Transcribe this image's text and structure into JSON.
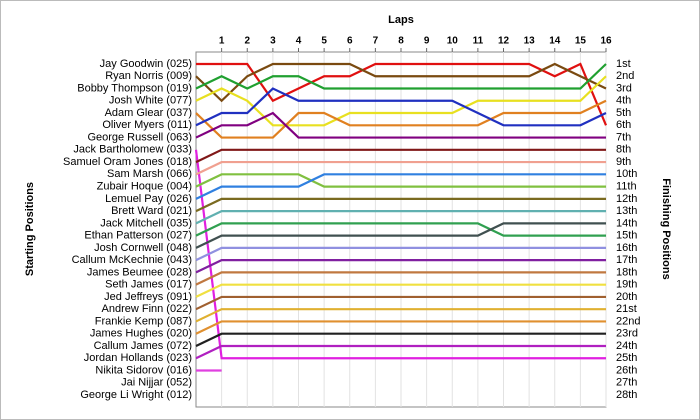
{
  "chart_data": {
    "type": "lap",
    "title": "Laps",
    "y_label": "Starting Positions",
    "y2_label": "Finishing Positions",
    "x": [
      0,
      1,
      2,
      3,
      4,
      5,
      6,
      7,
      8,
      9,
      10,
      11,
      12,
      13,
      14,
      15,
      16
    ],
    "xlim": [
      0,
      16
    ],
    "xticks": [
      1,
      2,
      3,
      4,
      5,
      6,
      7,
      8,
      9,
      10,
      11,
      12,
      13,
      14,
      15,
      16
    ],
    "ylim": [
      1,
      28
    ],
    "grid": true,
    "finish_labels": [
      "1st",
      "2nd",
      "3rd",
      "4th",
      "5th",
      "6th",
      "7th",
      "8th",
      "9th",
      "10th",
      "11th",
      "12th",
      "13th",
      "14th",
      "15th",
      "16th",
      "17th",
      "18th",
      "19th",
      "20th",
      "21st",
      "22nd",
      "23rd",
      "24th",
      "25th",
      "26th",
      "27th",
      "28th"
    ],
    "series": [
      {
        "name": "Jay Goodwin (025)",
        "color": "#e01010",
        "values": [
          1,
          1,
          1,
          4,
          3,
          2,
          2,
          1,
          1,
          1,
          1,
          1,
          1,
          1,
          2,
          1,
          6
        ]
      },
      {
        "name": "Ryan Norris (009)",
        "color": "#7a4a10",
        "values": [
          2,
          4,
          2,
          1,
          1,
          1,
          1,
          2,
          2,
          2,
          2,
          2,
          2,
          2,
          1,
          2,
          3
        ]
      },
      {
        "name": "Bobby Thompson (019)",
        "color": "#20a030",
        "values": [
          3,
          2,
          3,
          2,
          2,
          3,
          3,
          3,
          3,
          3,
          3,
          3,
          3,
          3,
          3,
          3,
          1
        ]
      },
      {
        "name": "Josh White (077)",
        "color": "#e8e020",
        "values": [
          4,
          3,
          4,
          6,
          6,
          6,
          5,
          5,
          5,
          5,
          5,
          4,
          4,
          4,
          4,
          4,
          2
        ]
      },
      {
        "name": "Adam Glear (037)",
        "color": "#e08020",
        "values": [
          5,
          7,
          7,
          7,
          5,
          5,
          6,
          6,
          6,
          6,
          6,
          6,
          5,
          5,
          5,
          5,
          4
        ]
      },
      {
        "name": "Oliver Myers (011)",
        "color": "#2030c0",
        "values": [
          6,
          5,
          5,
          3,
          4,
          4,
          4,
          4,
          4,
          4,
          4,
          5,
          6,
          6,
          6,
          6,
          5
        ]
      },
      {
        "name": "George Russell (063)",
        "color": "#800080",
        "values": [
          7,
          6,
          6,
          5,
          7,
          7,
          7,
          7,
          7,
          7,
          7,
          7,
          7,
          7,
          7,
          7,
          7
        ]
      },
      {
        "name": "Jack Bartholomew (033)",
        "color": "#e020e0",
        "values": [
          8,
          25,
          25,
          25,
          25,
          25,
          25,
          25,
          25,
          25,
          25,
          25,
          25,
          25,
          25,
          25,
          25
        ]
      },
      {
        "name": "Samuel Oram Jones (018)",
        "color": "#801818",
        "values": [
          9,
          8,
          8,
          8,
          8,
          8,
          8,
          8,
          8,
          8,
          8,
          8,
          8,
          8,
          8,
          8,
          8
        ]
      },
      {
        "name": "Sam Marsh (066)",
        "color": "#f0a090",
        "values": [
          10,
          9,
          9,
          9,
          9,
          9,
          9,
          9,
          9,
          9,
          9,
          9,
          9,
          9,
          9,
          9,
          9
        ]
      },
      {
        "name": "Zubair Hoque (004)",
        "color": "#80c040",
        "values": [
          11,
          10,
          10,
          10,
          10,
          11,
          11,
          11,
          11,
          11,
          11,
          11,
          11,
          11,
          11,
          11,
          11
        ]
      },
      {
        "name": "Lemuel Pay (026)",
        "color": "#3080e0",
        "values": [
          12,
          11,
          11,
          11,
          11,
          10,
          10,
          10,
          10,
          10,
          10,
          10,
          10,
          10,
          10,
          10,
          10
        ]
      },
      {
        "name": "Brett Ward (021)",
        "color": "#7a6a20",
        "values": [
          13,
          12,
          12,
          12,
          12,
          12,
          12,
          12,
          12,
          12,
          12,
          12,
          12,
          12,
          12,
          12,
          12
        ]
      },
      {
        "name": "Jack Mitchell (035)",
        "color": "#60b0b0",
        "values": [
          14,
          13,
          13,
          13,
          13,
          13,
          13,
          13,
          13,
          13,
          13,
          13,
          13,
          13,
          13,
          13,
          13
        ]
      },
      {
        "name": "Ethan Patterson (027)",
        "color": "#30a050",
        "values": [
          15,
          14,
          14,
          14,
          14,
          14,
          14,
          14,
          14,
          14,
          14,
          14,
          15,
          15,
          15,
          15,
          15
        ]
      },
      {
        "name": "Josh Cornwell (048)",
        "color": "#405050",
        "values": [
          16,
          15,
          15,
          15,
          15,
          15,
          15,
          15,
          15,
          15,
          15,
          15,
          14,
          14,
          14,
          14,
          14
        ]
      },
      {
        "name": "Callum McKechnie (043)",
        "color": "#9090e0",
        "values": [
          17,
          16,
          16,
          16,
          16,
          16,
          16,
          16,
          16,
          16,
          16,
          16,
          16,
          16,
          16,
          16,
          16
        ]
      },
      {
        "name": "James Beumee (028)",
        "color": "#8020a0",
        "values": [
          18,
          17,
          17,
          17,
          17,
          17,
          17,
          17,
          17,
          17,
          17,
          17,
          17,
          17,
          17,
          17,
          17
        ]
      },
      {
        "name": "Seth James (017)",
        "color": "#c07840",
        "values": [
          19,
          18,
          18,
          18,
          18,
          18,
          18,
          18,
          18,
          18,
          18,
          18,
          18,
          18,
          18,
          18,
          18
        ]
      },
      {
        "name": "Jed Jeffreys (091)",
        "color": "#f0e040",
        "values": [
          20,
          19,
          19,
          19,
          19,
          19,
          19,
          19,
          19,
          19,
          19,
          19,
          19,
          19,
          19,
          19,
          19
        ]
      },
      {
        "name": "Andrew Finn (022)",
        "color": "#a06030",
        "values": [
          21,
          20,
          20,
          20,
          20,
          20,
          20,
          20,
          20,
          20,
          20,
          20,
          20,
          20,
          20,
          20,
          20
        ]
      },
      {
        "name": "Frankie Kemp (087)",
        "color": "#e0b030",
        "values": [
          22,
          21,
          21,
          21,
          21,
          21,
          21,
          21,
          21,
          21,
          21,
          21,
          21,
          21,
          21,
          21,
          21
        ]
      },
      {
        "name": "James Hughes (020)",
        "color": "#e09030",
        "values": [
          23,
          22,
          22,
          22,
          22,
          22,
          22,
          22,
          22,
          22,
          22,
          22,
          22,
          22,
          22,
          22,
          22
        ]
      },
      {
        "name": "Callum James (072)",
        "color": "#202020",
        "values": [
          24,
          23,
          23,
          23,
          23,
          23,
          23,
          23,
          23,
          23,
          23,
          23,
          23,
          23,
          23,
          23,
          23
        ]
      },
      {
        "name": "Jordan Hollands (023)",
        "color": "#b020c0",
        "values": [
          25,
          24,
          24,
          24,
          24,
          24,
          24,
          24,
          24,
          24,
          24,
          24,
          24,
          24,
          24,
          24,
          24
        ]
      },
      {
        "name": "Nikita Sidorov (016)",
        "color": "#e040e0",
        "values": [
          26,
          26,
          null,
          null,
          null,
          null,
          null,
          null,
          null,
          null,
          null,
          null,
          null,
          null,
          null,
          null,
          null
        ]
      },
      {
        "name": "Jai Nijjar (052)",
        "color": "#808080",
        "values": [
          null,
          null,
          null,
          null,
          null,
          null,
          null,
          null,
          null,
          null,
          null,
          null,
          null,
          null,
          null,
          null,
          null
        ]
      },
      {
        "name": "George Li Wright (012)",
        "color": "#808080",
        "values": [
          null,
          null,
          null,
          null,
          null,
          null,
          null,
          null,
          null,
          null,
          null,
          null,
          null,
          null,
          null,
          null,
          null
        ]
      }
    ]
  }
}
